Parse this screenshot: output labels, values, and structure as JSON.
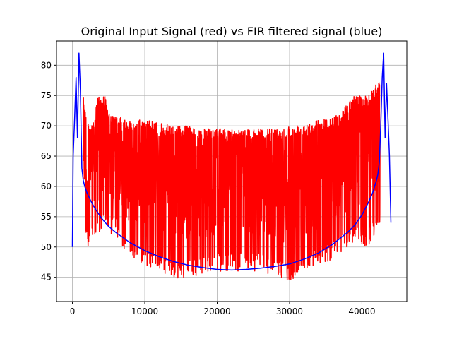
{
  "chart_data": {
    "type": "line",
    "title": "Original Input Signal (red) vs FIR filtered signal (blue)",
    "xlabel": "",
    "ylabel": "",
    "xlim": [
      -2200,
      46200
    ],
    "ylim": [
      41,
      84
    ],
    "grid": true,
    "x_ticks": [
      0,
      10000,
      20000,
      30000,
      40000
    ],
    "y_ticks": [
      45,
      50,
      55,
      60,
      65,
      70,
      75,
      80
    ],
    "x_tick_labels": [
      "0",
      "10000",
      "20000",
      "30000",
      "40000"
    ],
    "y_tick_labels": [
      "45",
      "50",
      "55",
      "60",
      "65",
      "70",
      "75",
      "80"
    ],
    "series": [
      {
        "color": "#0000ff",
        "x": [
          0,
          100,
          300,
          500,
          700,
          900,
          1100,
          1300,
          1500,
          1700,
          2000,
          2500,
          3000,
          4000,
          5000,
          6000,
          8000,
          10000,
          12000,
          14000,
          16000,
          18000,
          20000,
          22000,
          24000,
          26000,
          28000,
          30000,
          32000,
          34000,
          36000,
          38000,
          39000,
          40000,
          41000,
          41500,
          42000,
          42200,
          42400,
          42600,
          42800,
          43000,
          43200,
          43400,
          43600,
          43800,
          44000
        ],
        "y": [
          50,
          65,
          71,
          78,
          68,
          82,
          76,
          63,
          61,
          60,
          59,
          57.7,
          56.6,
          54.8,
          53.4,
          52.4,
          50.7,
          49.4,
          48.4,
          47.6,
          47,
          46.6,
          46.3,
          46.2,
          46.3,
          46.5,
          46.8,
          47.2,
          48,
          49,
          50.5,
          52.4,
          53.6,
          55.3,
          57.6,
          59,
          61,
          62,
          64,
          70,
          78,
          82,
          68,
          77,
          71,
          65,
          54
        ]
      },
      {
        "color": "#ff0000",
        "envelope_x": [
          1500,
          2000,
          3000,
          3500,
          4500,
          5000,
          6000,
          8000,
          10000,
          12000,
          14000,
          16000,
          18000,
          20000,
          22000,
          24000,
          26000,
          28000,
          30000,
          32000,
          34000,
          36000,
          37000,
          38000,
          39000,
          40000,
          41000,
          41500,
          42000,
          42500
        ],
        "envelope_upper": [
          76,
          70.5,
          70.5,
          75,
          75,
          72,
          71.5,
          71,
          71,
          70.5,
          70,
          70,
          69.5,
          69.5,
          69.5,
          69.5,
          69.5,
          69.5,
          70,
          70.5,
          71,
          71.5,
          72,
          74,
          75,
          75,
          75,
          76,
          77,
          78
        ],
        "envelope_lower": [
          54,
          50,
          51,
          51,
          53,
          52,
          52,
          48,
          47,
          46,
          44.5,
          45,
          45.5,
          46,
          46,
          46,
          46,
          45,
          44,
          46,
          47,
          48,
          49,
          50,
          51,
          50,
          50,
          51,
          53,
          54
        ]
      }
    ]
  }
}
